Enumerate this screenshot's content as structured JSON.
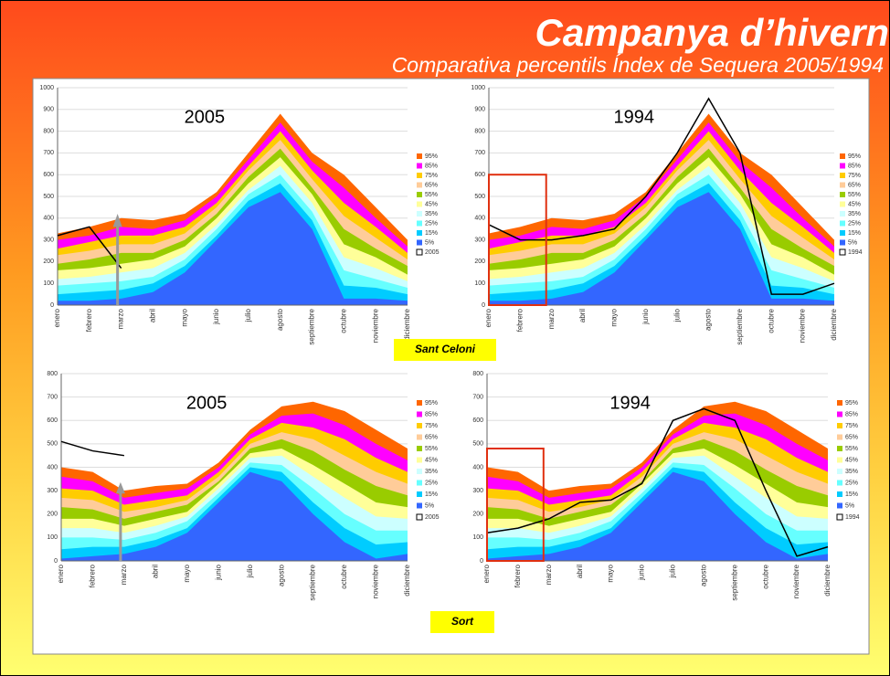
{
  "header": {
    "title": "Campanya d’hivern",
    "subtitle": "Comparativa percentils Índex de Sequera 2005/1994"
  },
  "stations": [
    {
      "name": "Sant Celoni",
      "type": "area",
      "categories": [
        "enero",
        "febrero",
        "marzo",
        "abril",
        "mayo",
        "junio",
        "julio",
        "agosto",
        "septiembre",
        "octubre",
        "noviembre",
        "diciembre"
      ],
      "ylim": [
        0,
        1000
      ],
      "yticks": [
        0,
        100,
        200,
        300,
        400,
        500,
        600,
        700,
        800,
        900,
        1000
      ],
      "percentiles": [
        {
          "name": "95%",
          "color": "#ff6600",
          "values": [
            330,
            360,
            400,
            390,
            420,
            520,
            700,
            880,
            700,
            600,
            450,
            300
          ]
        },
        {
          "name": "85%",
          "color": "#ff00ff",
          "values": [
            300,
            320,
            360,
            350,
            390,
            500,
            670,
            840,
            660,
            540,
            400,
            270
          ]
        },
        {
          "name": "75%",
          "color": "#ffcc00",
          "values": [
            260,
            290,
            320,
            320,
            360,
            470,
            640,
            800,
            620,
            470,
            360,
            240
          ]
        },
        {
          "name": "65%",
          "color": "#ffcc99",
          "values": [
            230,
            250,
            280,
            280,
            330,
            450,
            620,
            760,
            580,
            410,
            310,
            210
          ]
        },
        {
          "name": "55%",
          "color": "#99cc00",
          "values": [
            190,
            210,
            240,
            240,
            300,
            420,
            590,
            720,
            540,
            350,
            260,
            180
          ]
        },
        {
          "name": "45%",
          "color": "#ffff99",
          "values": [
            160,
            170,
            190,
            210,
            270,
            400,
            560,
            680,
            510,
            280,
            220,
            140
          ]
        },
        {
          "name": "35%",
          "color": "#ccffff",
          "values": [
            120,
            130,
            150,
            170,
            240,
            370,
            530,
            640,
            470,
            220,
            170,
            110
          ]
        },
        {
          "name": "25%",
          "color": "#66ffff",
          "values": [
            90,
            100,
            110,
            130,
            210,
            350,
            510,
            600,
            430,
            160,
            120,
            80
          ]
        },
        {
          "name": "15%",
          "color": "#00ccff",
          "values": [
            50,
            60,
            70,
            100,
            180,
            320,
            480,
            560,
            390,
            90,
            80,
            50
          ]
        },
        {
          "name": "5%",
          "color": "#3366ff",
          "values": [
            20,
            20,
            30,
            60,
            150,
            300,
            450,
            520,
            350,
            30,
            30,
            20
          ]
        }
      ],
      "years": [
        {
          "name": "2005",
          "color": "#000000",
          "values": [
            320,
            360,
            170,
            null,
            null,
            null,
            null,
            null,
            null,
            null,
            null,
            null
          ]
        },
        {
          "name": "1994",
          "color": "#000000",
          "values": [
            370,
            300,
            300,
            320,
            350,
            500,
            700,
            950,
            700,
            50,
            50,
            100
          ]
        }
      ]
    },
    {
      "name": "Sort",
      "type": "area",
      "categories": [
        "enero",
        "febrero",
        "marzo",
        "abril",
        "mayo",
        "junio",
        "julio",
        "agosto",
        "septiembre",
        "octubre",
        "noviembre",
        "diciembre"
      ],
      "ylim": [
        0,
        800
      ],
      "yticks": [
        0,
        100,
        200,
        300,
        400,
        500,
        600,
        700,
        800
      ],
      "percentiles": [
        {
          "name": "95%",
          "color": "#ff6600",
          "values": [
            400,
            380,
            300,
            320,
            330,
            420,
            560,
            660,
            680,
            640,
            560,
            480
          ]
        },
        {
          "name": "85%",
          "color": "#ff00ff",
          "values": [
            360,
            340,
            270,
            290,
            310,
            400,
            540,
            620,
            630,
            580,
            500,
            430
          ]
        },
        {
          "name": "75%",
          "color": "#ffcc00",
          "values": [
            310,
            300,
            240,
            260,
            280,
            380,
            520,
            590,
            570,
            520,
            440,
            380
          ]
        },
        {
          "name": "65%",
          "color": "#ffcc99",
          "values": [
            270,
            260,
            210,
            230,
            260,
            360,
            500,
            550,
            520,
            450,
            380,
            330
          ]
        },
        {
          "name": "55%",
          "color": "#99cc00",
          "values": [
            230,
            220,
            180,
            210,
            240,
            340,
            480,
            520,
            470,
            390,
            320,
            280
          ]
        },
        {
          "name": "45%",
          "color": "#ffff99",
          "values": [
            180,
            180,
            150,
            180,
            210,
            330,
            460,
            480,
            410,
            330,
            250,
            230
          ]
        },
        {
          "name": "35%",
          "color": "#ccffff",
          "values": [
            140,
            140,
            120,
            150,
            190,
            310,
            440,
            450,
            360,
            270,
            190,
            180
          ]
        },
        {
          "name": "25%",
          "color": "#66ffff",
          "values": [
            100,
            100,
            90,
            120,
            170,
            290,
            420,
            410,
            310,
            200,
            130,
            130
          ]
        },
        {
          "name": "15%",
          "color": "#00ccff",
          "values": [
            50,
            60,
            60,
            90,
            140,
            270,
            400,
            380,
            250,
            140,
            70,
            80
          ]
        },
        {
          "name": "5%",
          "color": "#3366ff",
          "values": [
            10,
            20,
            30,
            60,
            120,
            250,
            380,
            340,
            200,
            80,
            10,
            30
          ]
        }
      ],
      "years": [
        {
          "name": "2005",
          "color": "#000000",
          "values": [
            510,
            470,
            450,
            null,
            null,
            null,
            null,
            null,
            null,
            null,
            null,
            null
          ]
        },
        {
          "name": "1994",
          "color": "#000000",
          "values": [
            120,
            140,
            180,
            250,
            260,
            330,
            600,
            650,
            600,
            300,
            20,
            60
          ]
        }
      ]
    }
  ]
}
